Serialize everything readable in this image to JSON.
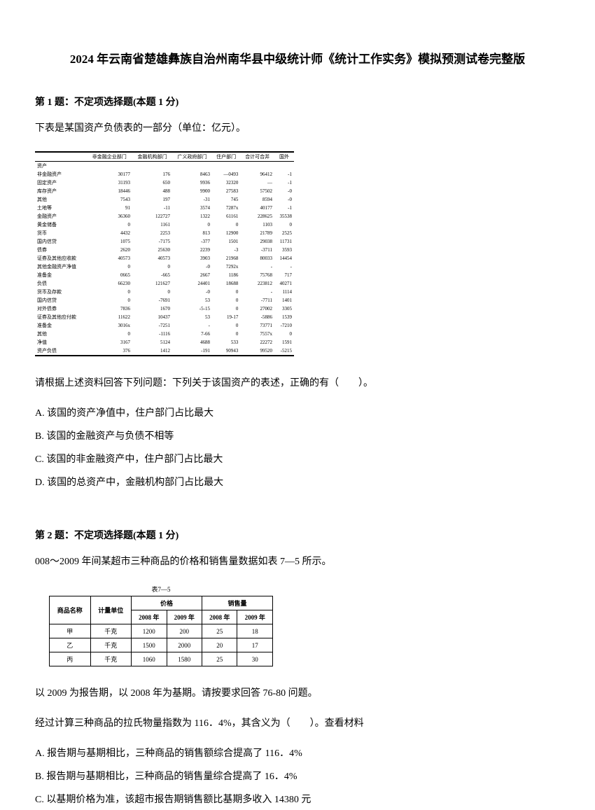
{
  "title": "2024 年云南省楚雄彝族自治州南华县中级统计师《统计工作实务》模拟预测试卷完整版",
  "q1": {
    "header": "第 1 题：不定项选择题(本题 1 分)",
    "intro": "下表是某国资产负债表的一部分（单位：亿元）。",
    "table": {
      "headers": [
        "",
        "非金融企业部门",
        "金融机构部门",
        "广义政府部门",
        "住户部门",
        "合计可合并",
        "国外"
      ],
      "rows": [
        [
          "资产",
          "",
          "",
          "",
          "",
          "",
          ""
        ],
        [
          "非金融资产",
          "30177",
          "176",
          "8463",
          "—0493",
          "96412",
          "-1"
        ],
        [
          "固定资产",
          "31193",
          "650",
          "9936",
          "32320",
          "—",
          "-1"
        ],
        [
          "库存资产",
          "18446",
          "488",
          "9900",
          "27583",
          "57502",
          "-0"
        ],
        [
          "其他",
          "7543",
          "197",
          "-31",
          "745",
          "8594",
          "-0"
        ],
        [
          "土地等",
          "91",
          "-11",
          "3574",
          "7287x",
          "40177",
          "-1"
        ],
        [
          "金融资产",
          "36360",
          "122727",
          "1322",
          "61161",
          "228625",
          "35538"
        ],
        [
          "黄金储备",
          "0",
          "1161",
          "0",
          "0",
          "1103",
          "0"
        ],
        [
          "货币",
          "4432",
          "2253",
          "813",
          "12900",
          "21789",
          "2525"
        ],
        [
          "国内信贷",
          "1075",
          "-7175",
          "-377",
          "1501",
          "29038",
          "11731"
        ],
        [
          "债券",
          "2620",
          "25630",
          "2239",
          "-3",
          "-3711",
          "3593"
        ],
        [
          "证券及其他应收款",
          "40573",
          "40573",
          "3903",
          "21968",
          "80033",
          "14454"
        ],
        [
          "其他金融资产净值",
          "0",
          "0",
          "-0",
          "7292x",
          "-",
          "-"
        ],
        [
          "准备金",
          "0665",
          "-665",
          "2667",
          "1186",
          "75768",
          "717"
        ],
        [
          "负债",
          "66230",
          "121627",
          "24401",
          "18688",
          "223812",
          "40271"
        ],
        [
          "货币及存款",
          "0",
          "0",
          "-0",
          "0",
          "-",
          "1114"
        ],
        [
          "国内信贷",
          "0",
          "-7691",
          "53",
          "0",
          "-7711",
          "1401"
        ],
        [
          "对外债券",
          "7836",
          "1670",
          "-5-15",
          "0",
          "27002",
          "3305"
        ],
        [
          "证券及其他应付款",
          "11622",
          "10437",
          "53",
          "19-17",
          "-5886",
          "1539"
        ],
        [
          "准备金",
          "3016x",
          "-7251",
          "-",
          "0",
          "73771",
          "-7210"
        ],
        [
          "其他",
          "0",
          "-1116",
          "7-66",
          "0",
          "7557x",
          "0"
        ],
        [
          "净值",
          "3167",
          "5124",
          "4688",
          "533",
          "22272",
          "1591"
        ],
        [
          "资产负债",
          "376",
          "1412",
          "-191",
          "90943",
          "99520",
          "-5215"
        ]
      ]
    },
    "prompt": "请根据上述资料回答下列问题：下列关于该国资产的表述，正确的有（　　）。",
    "options": [
      "A. 该国的资产净值中，住户部门占比最大",
      "B. 该国的金融资产与负债不相等",
      "C. 该国的非金融资产中，住户部门占比最大",
      "D. 该国的总资产中，金融机构部门占比最大"
    ]
  },
  "q2": {
    "header": "第 2 题：不定项选择题(本题 1 分)",
    "intro": "008～2009 年间某超市三种商品的价格和销售量数据如表 7—5 所示。",
    "table_caption": "表7—5",
    "table": {
      "header_row1": [
        "商品名称",
        "计量单位",
        "价格",
        "销售量"
      ],
      "header_row2": [
        "",
        "",
        "2008 年",
        "2009 年",
        "2008 年",
        "2009 年"
      ],
      "rows": [
        [
          "甲",
          "千克",
          "1200",
          "200",
          "25",
          "18"
        ],
        [
          "乙",
          "千克",
          "1500",
          "2000",
          "20",
          "17"
        ],
        [
          "丙",
          "千克",
          "1060",
          "1580",
          "25",
          "30"
        ]
      ]
    },
    "prompt1": "以 2009 为报告期，以 2008 年为基期。请按要求回答 76-80 问题。",
    "prompt2": "经过计算三种商品的拉氏物量指数为 116．4%，其含义为（　　）。查看材料",
    "options": [
      "A. 报告期与基期相比，三种商品的销售额综合提高了 116．4%",
      "B. 报告期与基期相比，三种商品的销售量综合提高了 16．4%",
      "C. 以基期价格为准，该超市报告期销售额比基期多收入 14380 元"
    ]
  }
}
